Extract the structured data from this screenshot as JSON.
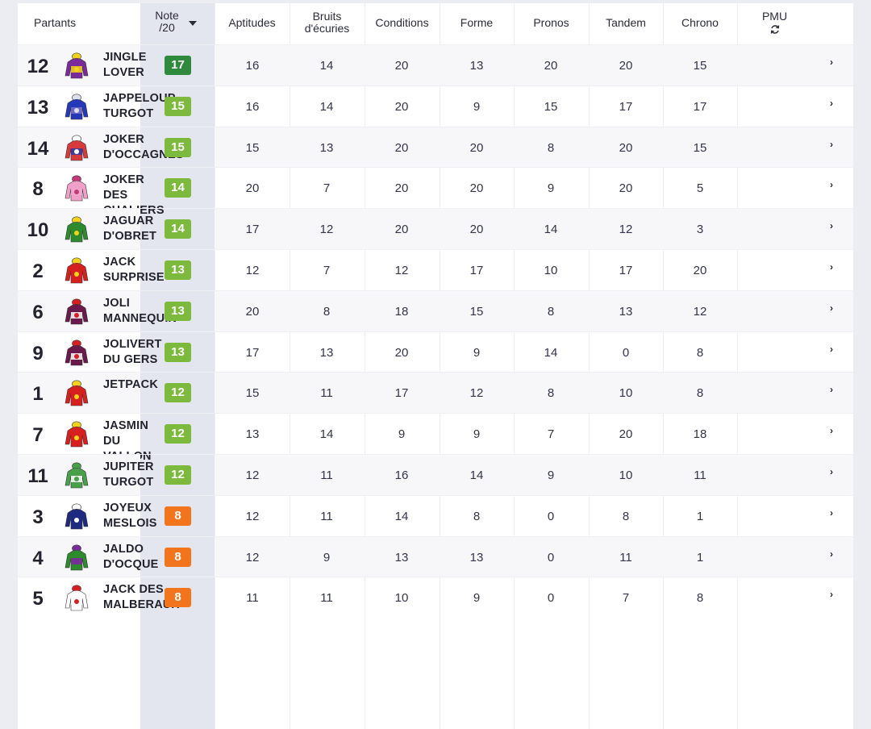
{
  "columns": {
    "partants": "Partants",
    "note": "Note\n/20",
    "aptitudes": "Aptitudes",
    "bruits": "Bruits\nd'écuries",
    "conditions": "Conditions",
    "forme": "Forme",
    "pronos": "Pronos",
    "tandem": "Tandem",
    "chrono": "Chrono",
    "pmu": "PMU",
    "pmu_icon": "refresh-icon",
    "sort_icon": "caret-down-icon"
  },
  "colors": {
    "dark_green": "#2f8a3e",
    "green": "#7cb93d",
    "orange": "#f2741c"
  },
  "rows": [
    {
      "num": "12",
      "name": "JINGLE\nLOVER",
      "note": "17",
      "note_color": "dark_green",
      "aptitudes": "16",
      "bruits": "14",
      "conditions": "20",
      "forme": "13",
      "pronos": "20",
      "tandem": "20",
      "chrono": "15",
      "silk": [
        "#f2d21c",
        "#7b2a9c",
        "#f2d21c"
      ]
    },
    {
      "num": "13",
      "name": "JAPPELOUP\nTURGOT",
      "note": "15",
      "note_color": "green",
      "aptitudes": "16",
      "bruits": "14",
      "conditions": "20",
      "forme": "9",
      "pronos": "15",
      "tandem": "17",
      "chrono": "17",
      "silk": [
        "#7c72c6",
        "#2438b8",
        "#dde0ee"
      ]
    },
    {
      "num": "14",
      "name": "JOKER\nD'OCCAGNES",
      "note": "15",
      "note_color": "green",
      "aptitudes": "15",
      "bruits": "13",
      "conditions": "20",
      "forme": "20",
      "pronos": "8",
      "tandem": "20",
      "chrono": "15",
      "silk": [
        "#2d3aa8",
        "#d63a3a",
        "#ffffff"
      ]
    },
    {
      "num": "8",
      "name": "JOKER\nDES\nCHALIERS",
      "note": "14",
      "note_color": "green",
      "aptitudes": "20",
      "bruits": "7",
      "conditions": "20",
      "forme": "20",
      "pronos": "9",
      "tandem": "20",
      "chrono": "5",
      "silk": [
        "#f5a8cf",
        "#f0a0c8",
        "#c23a7a"
      ]
    },
    {
      "num": "10",
      "name": "JAGUAR\nD'OBRET",
      "note": "14",
      "note_color": "green",
      "aptitudes": "17",
      "bruits": "12",
      "conditions": "20",
      "forme": "20",
      "pronos": "14",
      "tandem": "12",
      "chrono": "3",
      "silk": [
        "#2d8a2d",
        "#2d8a2d",
        "#f2d21c"
      ]
    },
    {
      "num": "2",
      "name": "JACK\nSURPRISE",
      "note": "13",
      "note_color": "green",
      "aptitudes": "12",
      "bruits": "7",
      "conditions": "12",
      "forme": "17",
      "pronos": "10",
      "tandem": "17",
      "chrono": "20",
      "silk": [
        "#d62020",
        "#d62020",
        "#f2d21c"
      ]
    },
    {
      "num": "6",
      "name": "JOLI\nMANNEQUIN",
      "note": "13",
      "note_color": "green",
      "aptitudes": "20",
      "bruits": "8",
      "conditions": "18",
      "forme": "15",
      "pronos": "8",
      "tandem": "13",
      "chrono": "12",
      "silk": [
        "#ffffff",
        "#6a1a4a",
        "#d62020"
      ]
    },
    {
      "num": "9",
      "name": "JOLIVERT\nDU GERS",
      "note": "13",
      "note_color": "green",
      "aptitudes": "17",
      "bruits": "13",
      "conditions": "20",
      "forme": "9",
      "pronos": "14",
      "tandem": "0",
      "chrono": "8",
      "silk": [
        "#ffffff",
        "#6a1a4a",
        "#d62020"
      ]
    },
    {
      "num": "1",
      "name": "JETPACK",
      "note": "12",
      "note_color": "green",
      "aptitudes": "15",
      "bruits": "11",
      "conditions": "17",
      "forme": "12",
      "pronos": "8",
      "tandem": "10",
      "chrono": "8",
      "silk": [
        "#d62020",
        "#d62020",
        "#f2d21c"
      ]
    },
    {
      "num": "7",
      "name": "JASMIN\nDU\nVALLON",
      "note": "12",
      "note_color": "green",
      "aptitudes": "13",
      "bruits": "14",
      "conditions": "9",
      "forme": "9",
      "pronos": "7",
      "tandem": "20",
      "chrono": "18",
      "silk": [
        "#d62020",
        "#d62020",
        "#f2d21c"
      ]
    },
    {
      "num": "11",
      "name": "JUPITER\nTURGOT",
      "note": "12",
      "note_color": "green",
      "aptitudes": "12",
      "bruits": "11",
      "conditions": "16",
      "forme": "14",
      "pronos": "9",
      "tandem": "10",
      "chrono": "11",
      "silk": [
        "#ffffff",
        "#4aa04a",
        "#4aa04a"
      ]
    },
    {
      "num": "3",
      "name": "JOYEUX\nMESLOIS",
      "note": "8",
      "note_color": "orange",
      "aptitudes": "12",
      "bruits": "11",
      "conditions": "14",
      "forme": "8",
      "pronos": "0",
      "tandem": "8",
      "chrono": "1",
      "silk": [
        "#1e2a80",
        "#1e2a80",
        "#ffffff"
      ]
    },
    {
      "num": "4",
      "name": "JALDO\nD'OCQUE",
      "note": "8",
      "note_color": "orange",
      "aptitudes": "12",
      "bruits": "9",
      "conditions": "13",
      "forme": "13",
      "pronos": "0",
      "tandem": "11",
      "chrono": "1",
      "silk": [
        "#7b2a9c",
        "#2d8a2d",
        "#7b2a9c"
      ]
    },
    {
      "num": "5",
      "name": "JACK DES\nMALBERAUX",
      "note": "8",
      "note_color": "orange",
      "aptitudes": "11",
      "bruits": "11",
      "conditions": "10",
      "forme": "9",
      "pronos": "0",
      "tandem": "7",
      "chrono": "8",
      "silk": [
        "#ffffff",
        "#ffffff",
        "#d62020"
      ]
    }
  ]
}
